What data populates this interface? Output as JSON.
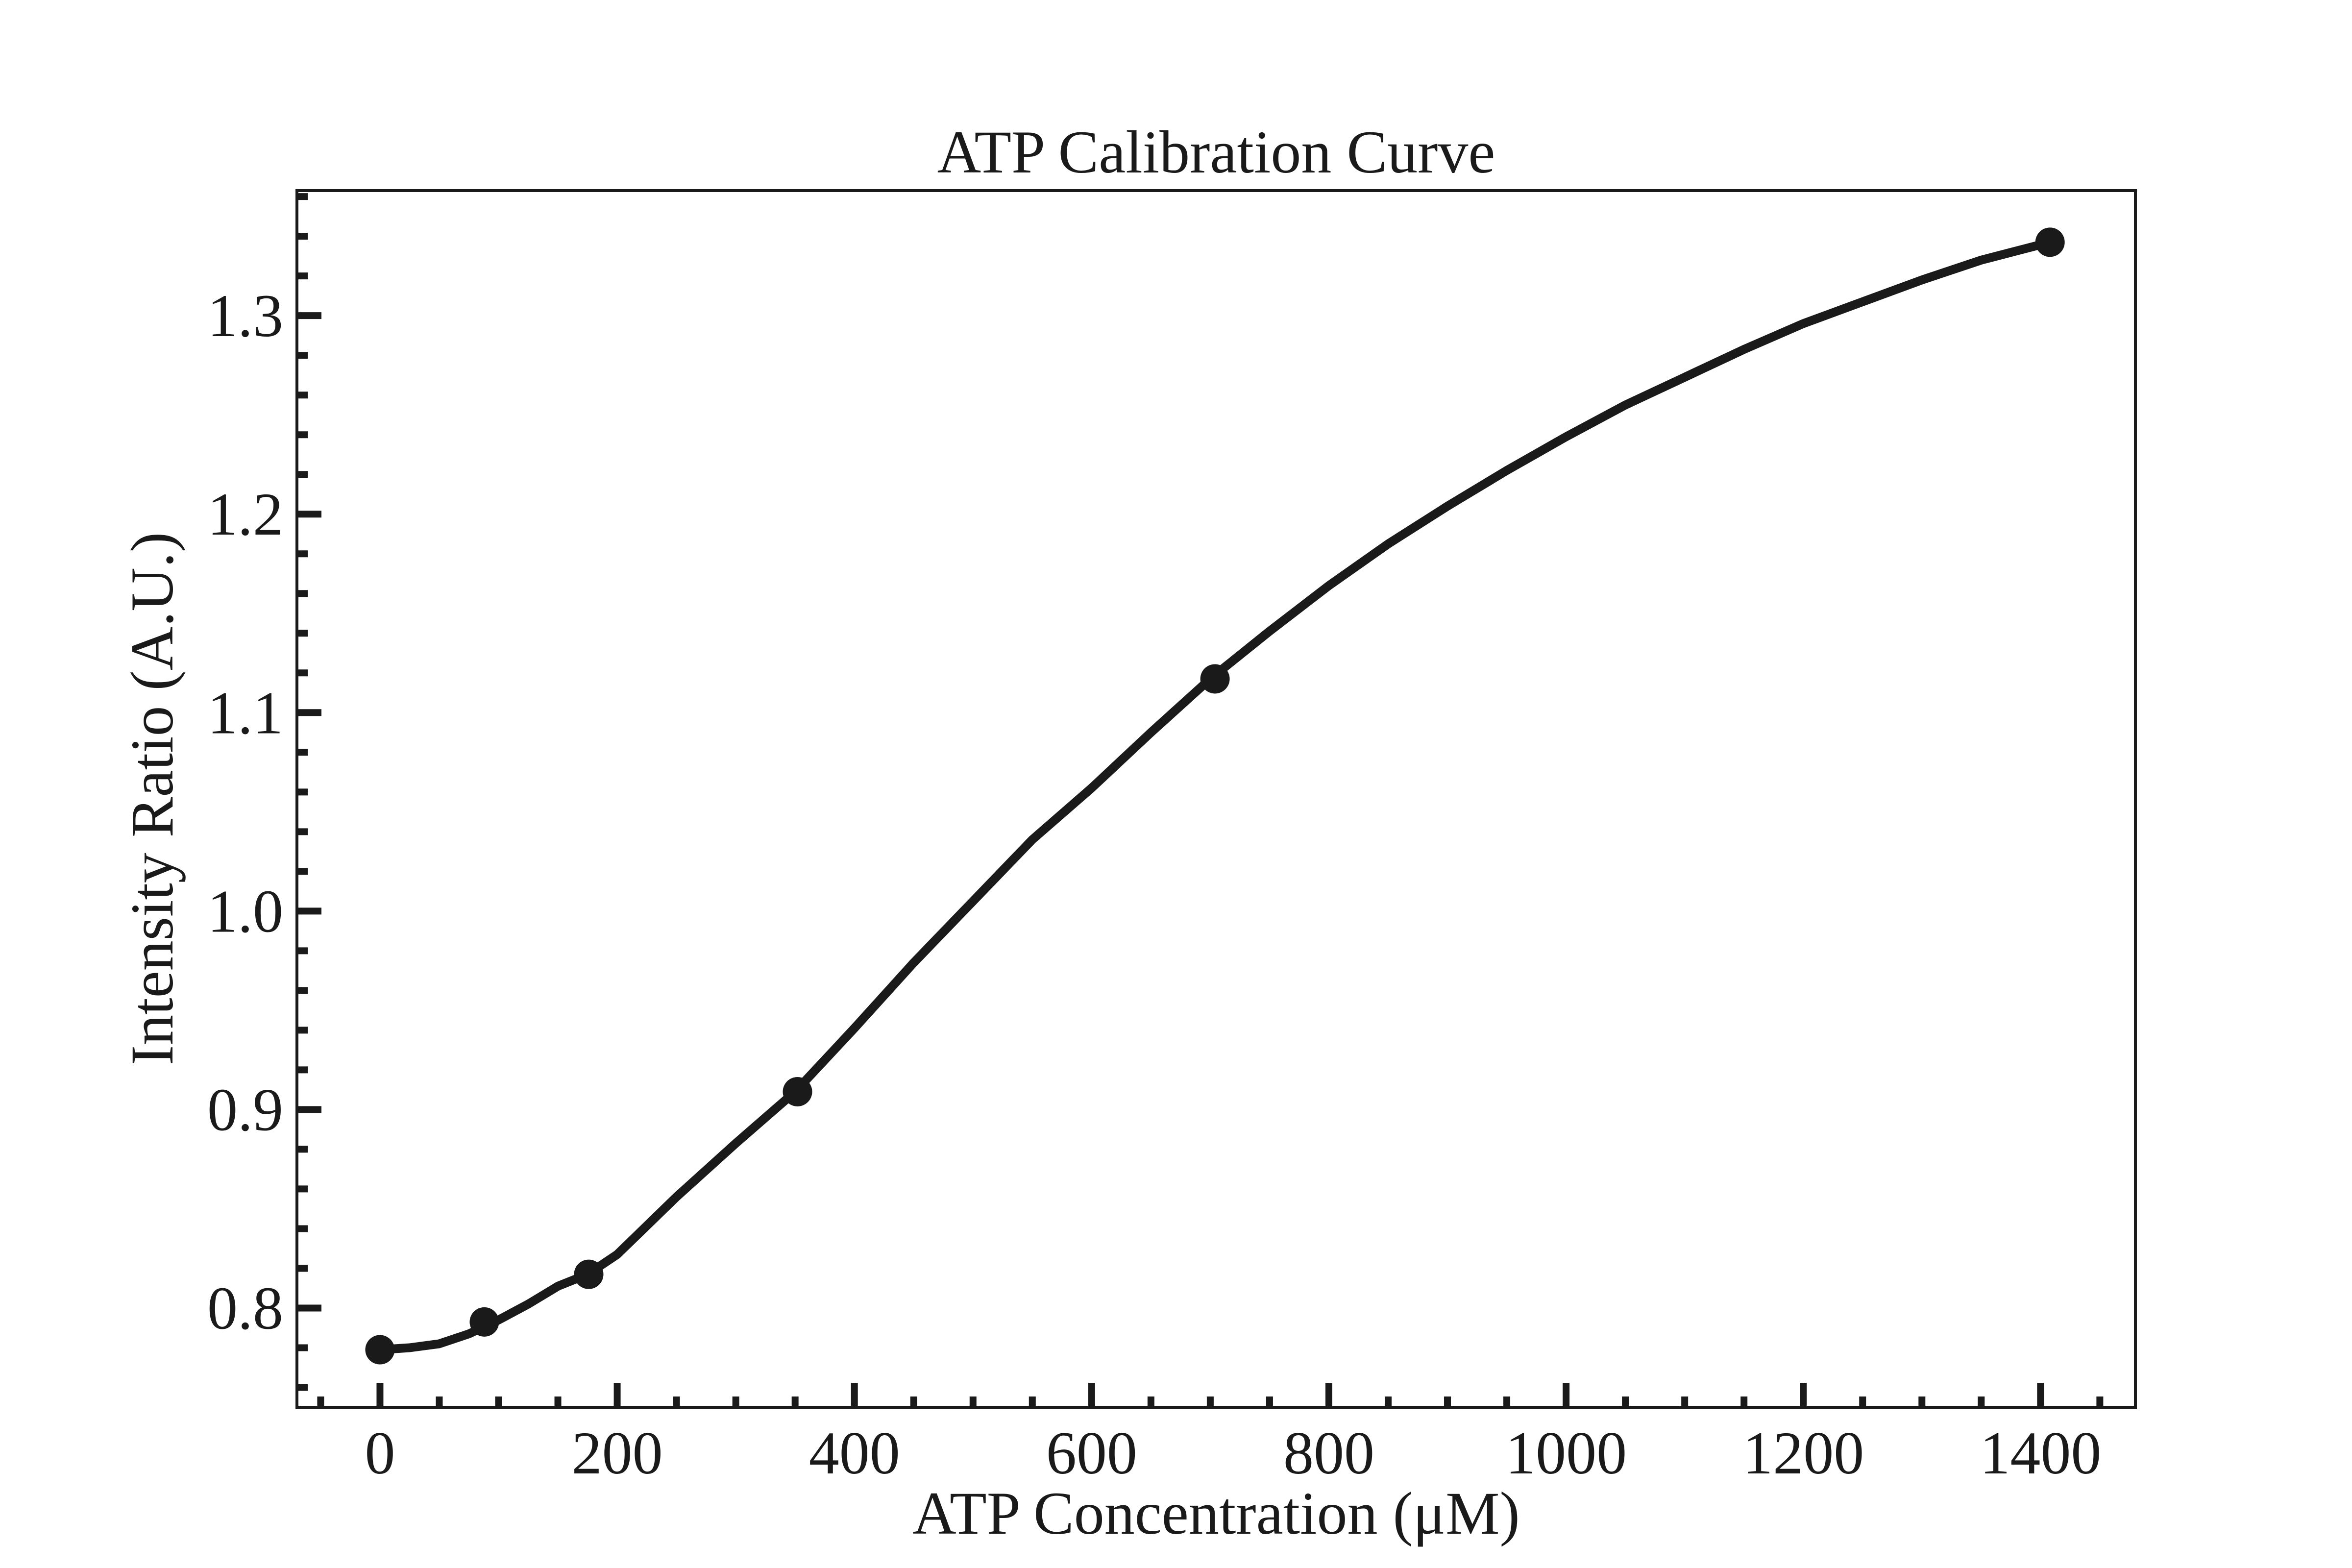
{
  "chart_data": {
    "type": "line",
    "title": "ATP Calibration Curve",
    "xlabel": "ATP Concentration (μM)",
    "ylabel": "Intensity Ratio (A.U.)",
    "xlim": [
      -70,
      1480
    ],
    "ylim": [
      0.75,
      1.363
    ],
    "x_ticks": [
      0,
      200,
      400,
      600,
      800,
      1000,
      1200,
      1400
    ],
    "x_tick_labels": [
      "0",
      "200",
      "400",
      "600",
      "800",
      "1000",
      "1200",
      "1400"
    ],
    "y_ticks": [
      0.8,
      0.9,
      1.0,
      1.1,
      1.2,
      1.3
    ],
    "y_tick_labels": [
      "0.8",
      "0.9",
      "1.0",
      "1.1",
      "1.2",
      "1.3"
    ],
    "grid": false,
    "series": [
      {
        "kind": "scatter",
        "x": [
          0,
          88,
          176,
          352,
          704,
          1408
        ],
        "y": [
          0.779,
          0.793,
          0.817,
          0.909,
          1.117,
          1.337
        ]
      },
      {
        "kind": "line",
        "x": [
          0,
          25,
          50,
          75,
          100,
          125,
          150,
          175,
          200,
          250,
          300,
          350,
          400,
          450,
          500,
          550,
          600,
          650,
          700,
          750,
          800,
          850,
          900,
          950,
          1000,
          1050,
          1100,
          1150,
          1200,
          1250,
          1300,
          1350,
          1408
        ],
        "y": [
          0.779,
          0.78,
          0.782,
          0.787,
          0.794,
          0.802,
          0.811,
          0.817,
          0.827,
          0.856,
          0.883,
          0.909,
          0.941,
          0.974,
          1.005,
          1.036,
          1.062,
          1.09,
          1.117,
          1.141,
          1.164,
          1.185,
          1.204,
          1.222,
          1.239,
          1.255,
          1.269,
          1.283,
          1.296,
          1.307,
          1.318,
          1.328,
          1.337
        ]
      }
    ]
  },
  "colors": {
    "ink": "#1a1a1a",
    "background": "#ffffff"
  }
}
